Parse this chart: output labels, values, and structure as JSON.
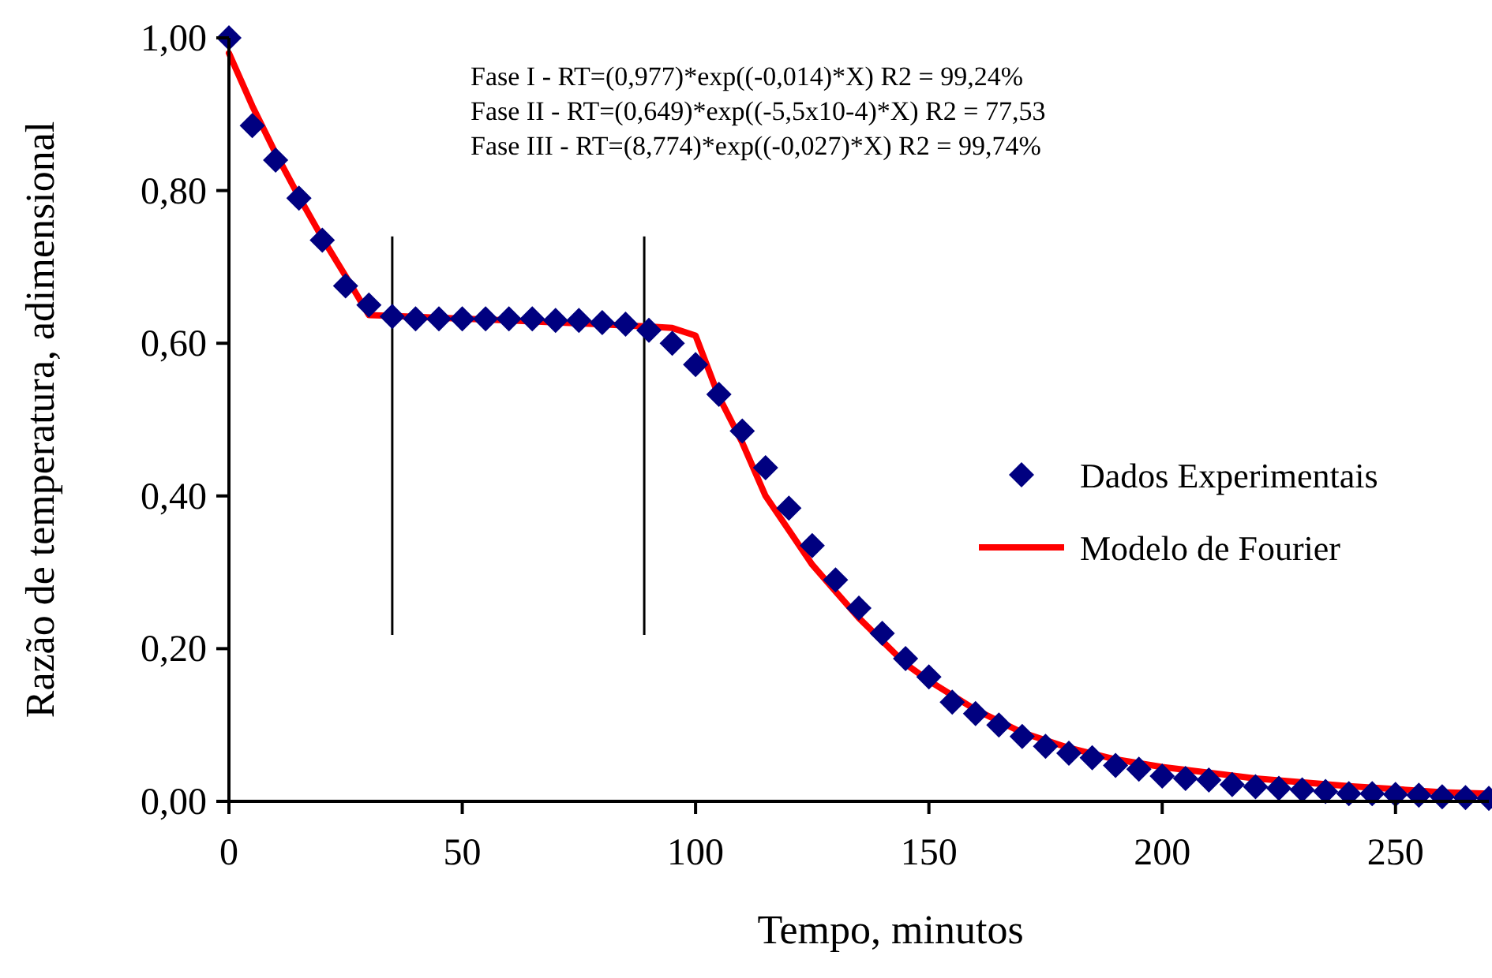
{
  "chart_data": {
    "type": "scatter",
    "xlabel": "Tempo, minutos",
    "ylabel": "Razão de temperatura, adimensional",
    "xlim": [
      0,
      270
    ],
    "ylim": [
      0,
      1
    ],
    "xticks": [
      0,
      50,
      100,
      150,
      200,
      250
    ],
    "yticks": [
      {
        "value": 0,
        "label": "0,00"
      },
      {
        "value": 0.2,
        "label": "0,20"
      },
      {
        "value": 0.4,
        "label": "0,40"
      },
      {
        "value": 0.6,
        "label": "0,60"
      },
      {
        "value": 0.8,
        "label": "0,80"
      },
      {
        "value": 1,
        "label": "1,00"
      }
    ],
    "grid": false,
    "legend": "right",
    "annotations": [
      "Fase I - RT=(0,977)*exp((-0,014)*X) R2 = 99,24%",
      "Fase II - RT=(0,649)*exp((-5,5x10-4)*X) R2 = 77,53",
      "Fase III - RT=(8,774)*exp((-0,027)*X) R2 = 99,74%"
    ],
    "ref_lines": [
      {
        "axis": "x",
        "value": 35,
        "color": "#000000"
      },
      {
        "axis": "x",
        "value": 89,
        "color": "#000000"
      }
    ],
    "series": [
      {
        "name": "Dados Experimentais",
        "marker": "diamond",
        "color": "#000080",
        "x": [
          0,
          5,
          10,
          15,
          20,
          25,
          30,
          35,
          40,
          45,
          50,
          55,
          60,
          65,
          70,
          75,
          80,
          85,
          90,
          95,
          100,
          105,
          110,
          115,
          120,
          125,
          130,
          135,
          140,
          145,
          150,
          155,
          160,
          165,
          170,
          175,
          180,
          185,
          190,
          195,
          200,
          205,
          210,
          215,
          220,
          225,
          230,
          235,
          240,
          245,
          250,
          255,
          260,
          265,
          270
        ],
        "values": [
          1.0,
          0.885,
          0.84,
          0.79,
          0.735,
          0.675,
          0.65,
          0.635,
          0.632,
          0.632,
          0.632,
          0.632,
          0.632,
          0.632,
          0.63,
          0.63,
          0.627,
          0.625,
          0.617,
          0.6,
          0.572,
          0.533,
          0.485,
          0.437,
          0.384,
          0.335,
          0.29,
          0.253,
          0.22,
          0.187,
          0.163,
          0.13,
          0.115,
          0.1,
          0.085,
          0.072,
          0.063,
          0.057,
          0.047,
          0.042,
          0.033,
          0.03,
          0.028,
          0.022,
          0.019,
          0.017,
          0.015,
          0.013,
          0.01,
          0.01,
          0.009,
          0.008,
          0.006,
          0.005,
          0.004
        ]
      },
      {
        "name": "Modelo de Fourier",
        "type": "line",
        "marker": "none",
        "line_style": "solid",
        "color": "#ff0000",
        "x": [
          0,
          5,
          10,
          15,
          20,
          25,
          30,
          60,
          90,
          95,
          100,
          105,
          110,
          115,
          120,
          125,
          130,
          135,
          140,
          145,
          150,
          160,
          170,
          180,
          190,
          200,
          220,
          240,
          260,
          270
        ],
        "values": [
          0.98,
          0.911,
          0.849,
          0.792,
          0.738,
          0.688,
          0.637,
          0.63,
          0.622,
          0.62,
          0.61,
          0.53,
          0.47,
          0.4,
          0.355,
          0.31,
          0.275,
          0.24,
          0.21,
          0.18,
          0.158,
          0.12,
          0.09,
          0.07,
          0.055,
          0.045,
          0.03,
          0.02,
          0.012,
          0.01
        ]
      }
    ]
  }
}
